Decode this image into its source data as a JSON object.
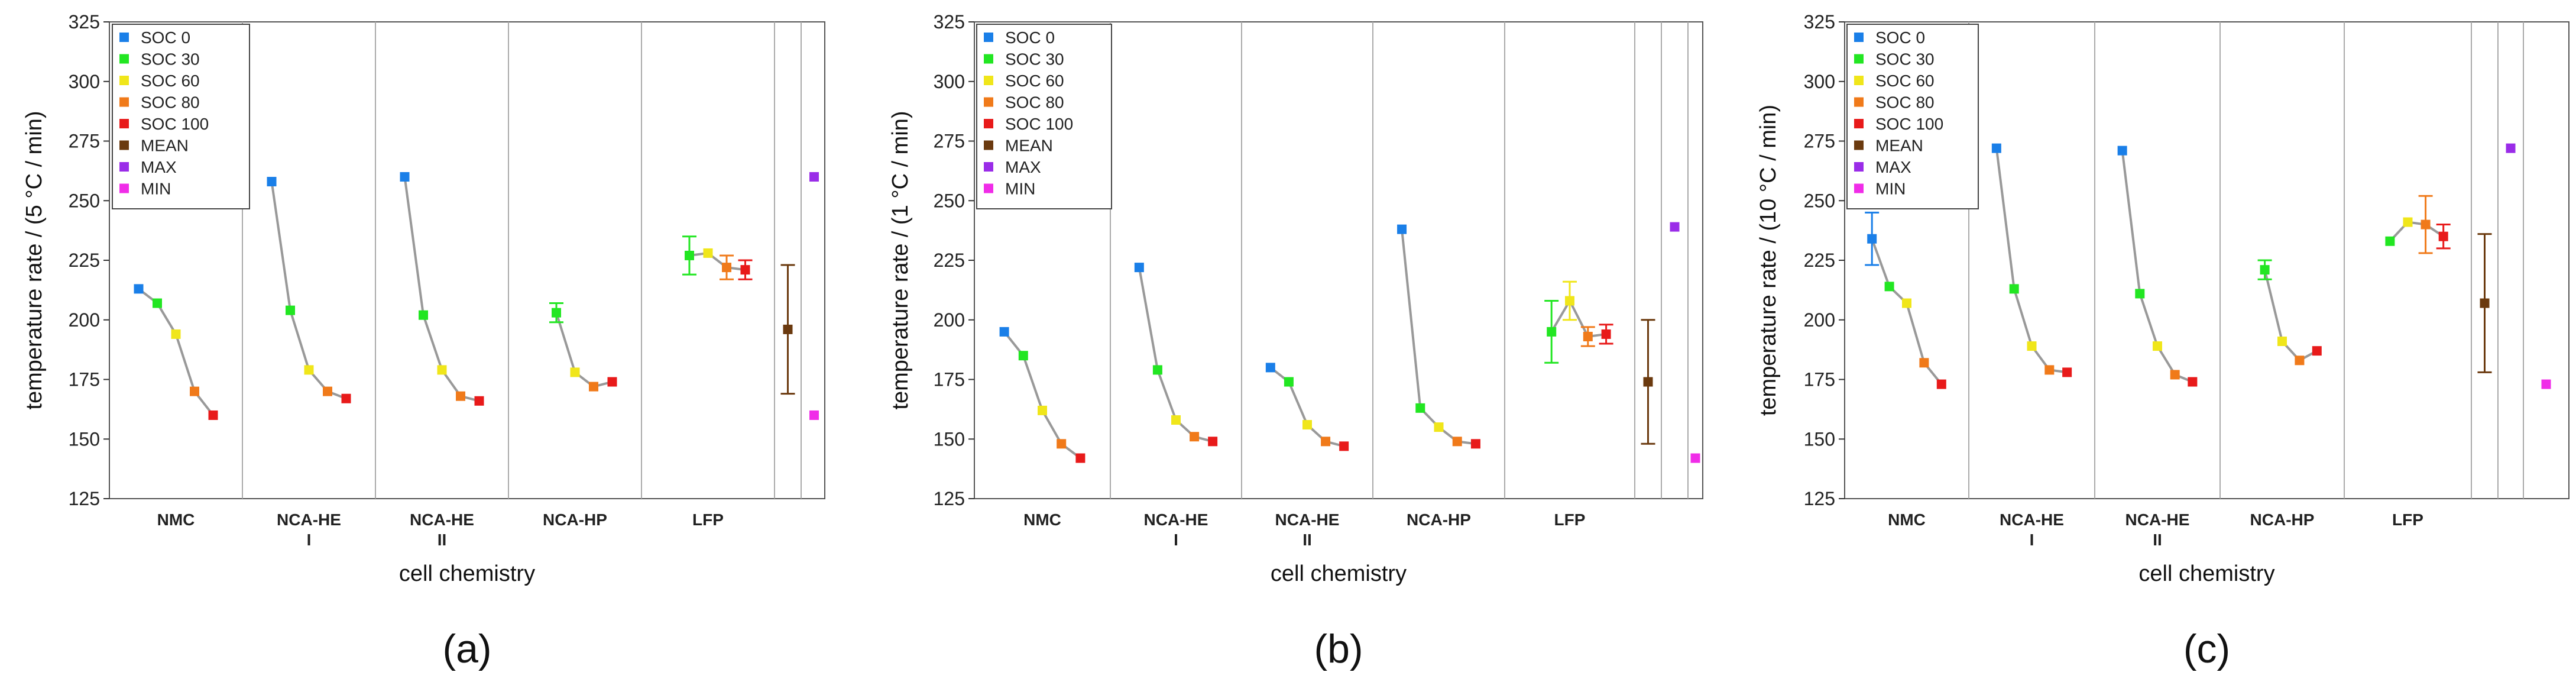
{
  "figure": {
    "panel_labels": [
      "(a)",
      "(b)",
      "(c)"
    ]
  },
  "colors": {
    "SOC 0": "#1a7fe8",
    "SOC 30": "#22e622",
    "SOC 60": "#f0e61a",
    "SOC 80": "#f07a1a",
    "SOC 100": "#e81a1a",
    "MEAN": "#6b3a0f",
    "MAX": "#9a2ce8",
    "MIN": "#f02ce8",
    "connector": "#999999",
    "separator": "#aaaaaa"
  },
  "chart_data": [
    {
      "type": "scatter",
      "panel_label": "(a)",
      "ylabel": "temperature rate / (5 °C / min)",
      "xlabel": "cell chemistry",
      "ylim": [
        125,
        325
      ],
      "yticks": [
        125,
        150,
        175,
        200,
        225,
        250,
        275,
        300,
        325
      ],
      "categories": [
        "NMC",
        "NCA-HE\nI",
        "NCA-HE\nII",
        "NCA-HP",
        "LFP"
      ],
      "legend": [
        "SOC 0",
        "SOC 30",
        "SOC 60",
        "SOC 80",
        "SOC 100",
        "MEAN",
        "MAX",
        "MIN"
      ],
      "series": [
        {
          "name": "SOC 0",
          "values": [
            213,
            258,
            260,
            null,
            null
          ],
          "errors": [
            0,
            0,
            0,
            0,
            0
          ]
        },
        {
          "name": "SOC 30",
          "values": [
            207,
            204,
            202,
            203,
            227
          ],
          "errors": [
            0,
            0,
            0,
            4,
            8
          ]
        },
        {
          "name": "SOC 60",
          "values": [
            194,
            179,
            179,
            178,
            228
          ],
          "errors": [
            0,
            0,
            0,
            0,
            0
          ]
        },
        {
          "name": "SOC 80",
          "values": [
            170,
            170,
            168,
            172,
            222
          ],
          "errors": [
            0,
            0,
            0,
            0,
            5
          ]
        },
        {
          "name": "SOC 100",
          "values": [
            160,
            167,
            166,
            174,
            221
          ],
          "errors": [
            0,
            0,
            0,
            0,
            4
          ]
        }
      ],
      "summary": {
        "MEAN": 196,
        "MEAN_error": 27,
        "MAX": 260,
        "MIN": 160
      }
    },
    {
      "type": "scatter",
      "panel_label": "(b)",
      "ylabel": "temperature rate / (1 °C / min)",
      "xlabel": "cell chemistry",
      "ylim": [
        125,
        325
      ],
      "yticks": [
        125,
        150,
        175,
        200,
        225,
        250,
        275,
        300,
        325
      ],
      "categories": [
        "NMC",
        "NCA-HE\nI",
        "NCA-HE\nII",
        "NCA-HP",
        "LFP"
      ],
      "legend": [
        "SOC 0",
        "SOC 30",
        "SOC 60",
        "SOC 80",
        "SOC 100",
        "MEAN",
        "MAX",
        "MIN"
      ],
      "series": [
        {
          "name": "SOC 0",
          "values": [
            195,
            222,
            180,
            238,
            null
          ],
          "errors": [
            0,
            0,
            0,
            0,
            0
          ]
        },
        {
          "name": "SOC 30",
          "values": [
            185,
            179,
            174,
            163,
            195
          ],
          "errors": [
            0,
            0,
            0,
            0,
            13
          ]
        },
        {
          "name": "SOC 60",
          "values": [
            162,
            158,
            156,
            155,
            208
          ],
          "errors": [
            0,
            0,
            0,
            0,
            8
          ]
        },
        {
          "name": "SOC 80",
          "values": [
            148,
            151,
            149,
            149,
            193
          ],
          "errors": [
            0,
            0,
            0,
            0,
            4
          ]
        },
        {
          "name": "SOC 100",
          "values": [
            142,
            149,
            147,
            148,
            194
          ],
          "errors": [
            0,
            0,
            0,
            0,
            4
          ]
        }
      ],
      "summary": {
        "MEAN": 174,
        "MEAN_error": 26,
        "MAX": 239,
        "MIN": 142
      }
    },
    {
      "type": "scatter",
      "panel_label": "(c)",
      "ylabel": "temperature rate / (10 °C / min)",
      "xlabel": "cell chemistry",
      "ylim": [
        125,
        325
      ],
      "yticks": [
        125,
        150,
        175,
        200,
        225,
        250,
        275,
        300,
        325
      ],
      "categories": [
        "NMC",
        "NCA-HE\nI",
        "NCA-HE\nII",
        "NCA-HP",
        "LFP"
      ],
      "legend": [
        "SOC 0",
        "SOC 30",
        "SOC 60",
        "SOC 80",
        "SOC 100",
        "MEAN",
        "MAX",
        "MIN"
      ],
      "series": [
        {
          "name": "SOC 0",
          "values": [
            234,
            272,
            271,
            null,
            null
          ],
          "errors": [
            11,
            0,
            0,
            0,
            0
          ]
        },
        {
          "name": "SOC 30",
          "values": [
            214,
            213,
            211,
            221,
            233
          ],
          "errors": [
            0,
            0,
            0,
            4,
            0
          ]
        },
        {
          "name": "SOC 60",
          "values": [
            207,
            189,
            189,
            191,
            241
          ],
          "errors": [
            0,
            0,
            0,
            0,
            0
          ]
        },
        {
          "name": "SOC 80",
          "values": [
            182,
            179,
            177,
            183,
            240
          ],
          "errors": [
            0,
            0,
            0,
            0,
            12
          ]
        },
        {
          "name": "SOC 100",
          "values": [
            173,
            178,
            174,
            187,
            235
          ],
          "errors": [
            0,
            0,
            0,
            0,
            5
          ]
        }
      ],
      "summary": {
        "MEAN": 207,
        "MEAN_error": 29,
        "MAX": 272,
        "MIN": 173
      }
    }
  ]
}
